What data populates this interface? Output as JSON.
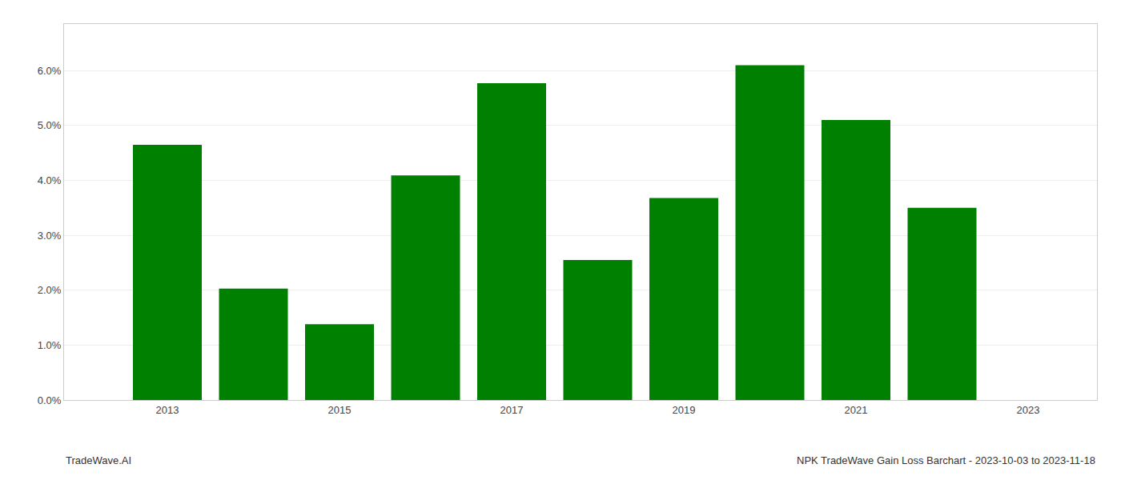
{
  "chart_data": {
    "type": "bar",
    "x": [
      2013,
      2014,
      2015,
      2016,
      2017,
      2018,
      2019,
      2020,
      2021,
      2022
    ],
    "values": [
      0.0465,
      0.0203,
      0.0138,
      0.0409,
      0.0577,
      0.0255,
      0.0368,
      0.061,
      0.051,
      0.035
    ],
    "color": "#008000",
    "ylim": [
      0,
      0.0685
    ],
    "yticks": [
      {
        "value": 0.0,
        "label": "0.0%"
      },
      {
        "value": 0.01,
        "label": "1.0%"
      },
      {
        "value": 0.02,
        "label": "2.0%"
      },
      {
        "value": 0.03,
        "label": "3.0%"
      },
      {
        "value": 0.04,
        "label": "4.0%"
      },
      {
        "value": 0.05,
        "label": "5.0%"
      },
      {
        "value": 0.06,
        "label": "6.0%"
      }
    ],
    "xlim": [
      2011.8,
      2023.8
    ],
    "xticks": [
      2013,
      2015,
      2017,
      2019,
      2021,
      2023
    ],
    "grid": true,
    "annotations": [
      "TradeWave.AI",
      "NPK TradeWave Gain Loss Barchart - 2023-10-03 to 2023-11-18"
    ]
  }
}
